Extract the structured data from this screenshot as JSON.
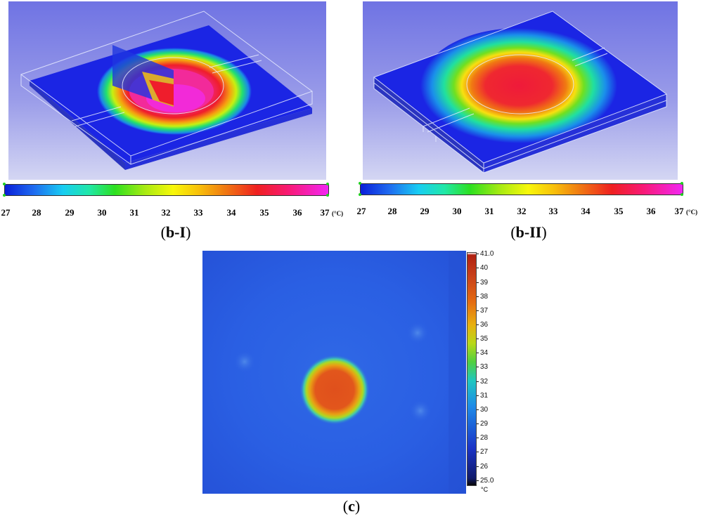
{
  "panel_b1": {
    "caption_letter": "b-I",
    "colorbar": {
      "ticks": [
        "27",
        "28",
        "29",
        "30",
        "31",
        "32",
        "33",
        "34",
        "35",
        "36",
        "37"
      ],
      "unit": "(°C)"
    }
  },
  "panel_b2": {
    "caption_letter": "b-II",
    "colorbar": {
      "ticks": [
        "27",
        "28",
        "29",
        "30",
        "31",
        "32",
        "33",
        "34",
        "35",
        "36",
        "37"
      ],
      "unit": "(°C)"
    }
  },
  "panel_c": {
    "caption_letter": "c",
    "colorbar": {
      "ticks": [
        "41.0",
        "40",
        "39",
        "38",
        "37",
        "36",
        "35",
        "34",
        "33",
        "32",
        "31",
        "30",
        "29",
        "28",
        "27",
        "26",
        "25.0"
      ],
      "unit": "°C"
    }
  },
  "colors": {
    "hot_core": "#f02cd8",
    "hot_ring": "#ef1d2c",
    "cold": "#1b25e4",
    "thermal_spot": "#e2531d"
  }
}
